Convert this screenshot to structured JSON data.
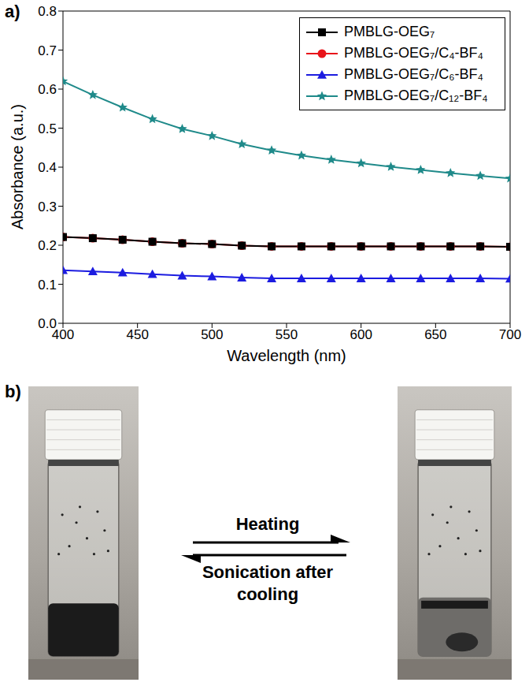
{
  "chart_data": {
    "type": "line",
    "panel": "a)",
    "x_label": "Wavelength (nm)",
    "y_label": "Absorbance (a.u.)",
    "x": [
      400,
      420,
      440,
      460,
      480,
      500,
      520,
      540,
      560,
      580,
      600,
      620,
      640,
      660,
      680,
      700
    ],
    "series": [
      {
        "name": "PMBLG-OEG₇",
        "color": "#000000",
        "marker": "square",
        "values": [
          0.221,
          0.218,
          0.214,
          0.209,
          0.205,
          0.203,
          0.199,
          0.197,
          0.197,
          0.197,
          0.197,
          0.197,
          0.197,
          0.197,
          0.197,
          0.196
        ]
      },
      {
        "name": "PMBLG-OEG₇/C₄-BF₄",
        "color": "#e8141a",
        "marker": "circle",
        "values": [
          0.221,
          0.218,
          0.214,
          0.209,
          0.205,
          0.203,
          0.199,
          0.197,
          0.197,
          0.197,
          0.197,
          0.197,
          0.197,
          0.197,
          0.197,
          0.196
        ]
      },
      {
        "name": "PMBLG-OEG₇/C₆-BF₄",
        "color": "#1c1ce0",
        "marker": "triangle",
        "values": [
          0.136,
          0.133,
          0.13,
          0.126,
          0.122,
          0.12,
          0.117,
          0.115,
          0.115,
          0.115,
          0.115,
          0.115,
          0.115,
          0.115,
          0.115,
          0.114
        ]
      },
      {
        "name": "PMBLG-OEG₇/C₁₂-BF₄",
        "color": "#1f8a8a",
        "marker": "star",
        "values": [
          0.62,
          0.585,
          0.553,
          0.523,
          0.498,
          0.48,
          0.459,
          0.443,
          0.43,
          0.419,
          0.41,
          0.401,
          0.393,
          0.385,
          0.378,
          0.371
        ]
      }
    ],
    "xlim": [
      400,
      700
    ],
    "xticks": [
      400,
      450,
      500,
      550,
      600,
      650,
      700
    ],
    "ylim": [
      0,
      0.8
    ],
    "yticks": [
      {
        "value": 0,
        "label": "0.0"
      },
      0.1,
      0.2,
      0.3,
      0.4,
      0.5,
      0.6,
      0.7,
      0.8
    ],
    "grid": false,
    "legend": "upper right"
  },
  "panel_b": {
    "label": "b)",
    "arrows": [
      {
        "label": "Heating",
        "direction": "right"
      },
      {
        "label": "Sonication after cooling",
        "direction": "left"
      }
    ]
  }
}
